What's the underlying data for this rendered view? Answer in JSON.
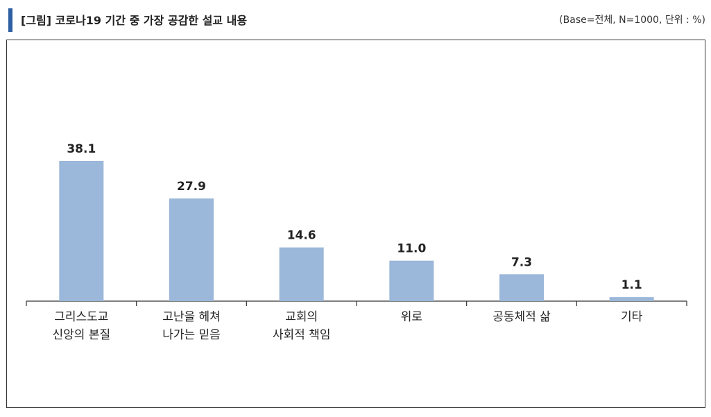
{
  "header": {
    "title": "[그림] 코로나19 기간 중 가장 공감한 설교 내용",
    "base_note": "(Base=전체, N=1000, 단위 : %)"
  },
  "colors": {
    "bar": "#9bb7d9",
    "accent": "#2e5fa3",
    "axis": "#333333"
  },
  "chart_data": {
    "type": "bar",
    "categories": [
      [
        "그리스도교",
        "신앙의 본질"
      ],
      [
        "고난을 헤쳐",
        "나가는 믿음"
      ],
      [
        "교회의",
        "사회적 책임"
      ],
      [
        "위로"
      ],
      [
        "공동체적 삶"
      ],
      [
        "기타"
      ]
    ],
    "values": [
      38.1,
      27.9,
      14.6,
      11.0,
      7.3,
      1.1
    ],
    "value_labels": [
      "38.1",
      "27.9",
      "14.6",
      "11.0",
      "7.3",
      "1.1"
    ],
    "title": "",
    "xlabel": "",
    "ylabel": "",
    "ylim": [
      0,
      45
    ],
    "grid": false,
    "legend": "none"
  }
}
